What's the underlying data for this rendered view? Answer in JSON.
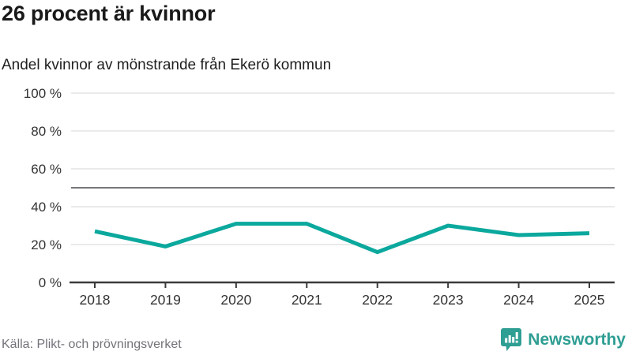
{
  "title": "26 procent är kvinnor",
  "subtitle": "Andel kvinnor av mönstrande från Ekerö kommun",
  "source": "Källa: Plikt- och prövningsverket",
  "branding": {
    "name": "Newsworthy"
  },
  "colors": {
    "line": "#0ba89d",
    "grid": "#e3e3e3",
    "reference": "#77777d",
    "axis": "#3a3a3a",
    "tick_text": "#333333",
    "title_text": "#191919",
    "source_text": "#72727a",
    "brand": "#2f9e93"
  },
  "chart_data": {
    "type": "line",
    "title": "26 procent är kvinnor",
    "subtitle": "Andel kvinnor av mönstrande från Ekerö kommun",
    "x": [
      2018,
      2019,
      2020,
      2021,
      2022,
      2023,
      2024,
      2025
    ],
    "series": [
      {
        "name": "Andel kvinnor",
        "values": [
          27,
          19,
          31,
          31,
          16,
          30,
          25,
          26
        ]
      }
    ],
    "unit": "%",
    "ylim": [
      0,
      100
    ],
    "yticks": [
      0,
      20,
      40,
      60,
      80,
      100
    ],
    "ytick_labels": [
      "0 %",
      "20 %",
      "40 %",
      "60 %",
      "80 %",
      "100 %"
    ],
    "reference_line": 50,
    "grid": true,
    "legend": "none",
    "xlabel": "",
    "ylabel": ""
  }
}
